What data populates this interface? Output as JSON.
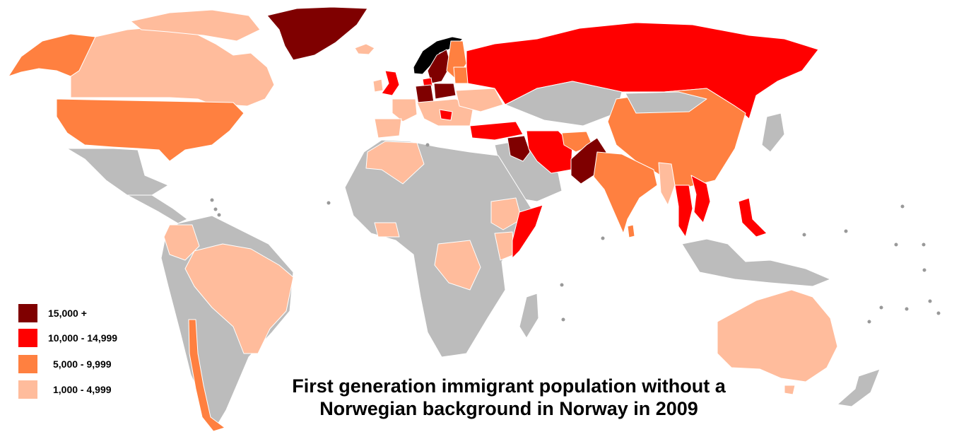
{
  "title": {
    "line1": "First generation immigrant population without a",
    "line2": "Norwegian background in Norway in 2009"
  },
  "legend": [
    {
      "label": "15,000 +",
      "color": "#7f0000"
    },
    {
      "label": "10,000 - 14,999",
      "color": "#ff0000"
    },
    {
      "label": "5,000 - 9,999",
      "color": "#ff8040"
    },
    {
      "label": "1,000 - 4,999",
      "color": "#ffbc9c"
    }
  ],
  "colors": {
    "no_data": "#bcbcbc",
    "border": "#ffffff",
    "norway": "#000000",
    "background": "#ffffff"
  }
}
